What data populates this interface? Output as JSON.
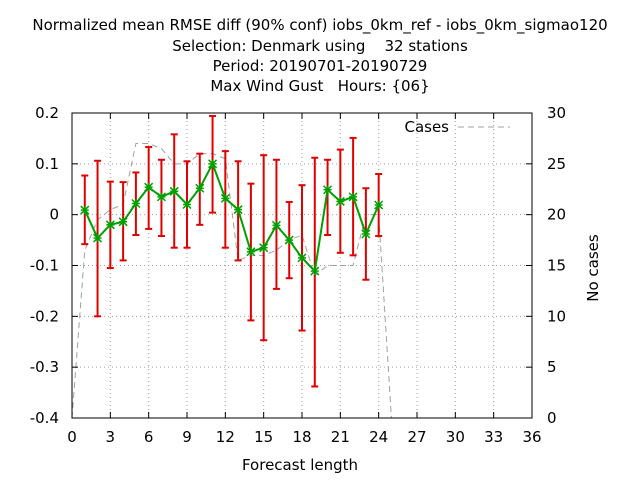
{
  "chart_data": {
    "type": "line",
    "title": [
      "Normalized mean RMSE diff (90% conf) iobs_0km_ref - iobs_0km_sigmao120",
      "Selection: Denmark using    32 stations",
      "Period: 20190701-20190729",
      "Max Wind Gust   Hours: {06}"
    ],
    "xlabel": "Forecast length",
    "ylabel": "",
    "y2label": "No cases",
    "xlim": [
      0,
      36
    ],
    "ylim": [
      -0.4,
      0.2
    ],
    "y2lim": [
      0,
      30
    ],
    "xticks": [
      0,
      3,
      6,
      9,
      12,
      15,
      18,
      21,
      24,
      27,
      30,
      33,
      36
    ],
    "yticks": [
      -0.4,
      -0.3,
      -0.2,
      -0.1,
      0,
      0.1,
      0.2
    ],
    "ytick_labels": [
      "-0.4",
      "-0.3",
      "-0.2",
      "-0.1",
      "0",
      "0.1",
      "0.2"
    ],
    "y2ticks": [
      0,
      5,
      10,
      15,
      20,
      25,
      30
    ],
    "grid": true,
    "legend_position": "top-right",
    "series": [
      {
        "name": "",
        "kind": "mean_with_errorbars",
        "color": "#00a000",
        "errorbar_color": "#e00000",
        "x": [
          1,
          2,
          3,
          4,
          5,
          6,
          7,
          8,
          9,
          10,
          11,
          12,
          13,
          14,
          15,
          16,
          17,
          18,
          19,
          20,
          21,
          22,
          23,
          24
        ],
        "y": [
          0.009,
          -0.046,
          -0.02,
          -0.014,
          0.022,
          0.054,
          0.035,
          0.046,
          0.02,
          0.052,
          0.1,
          0.032,
          0.01,
          -0.073,
          -0.065,
          -0.021,
          -0.05,
          -0.085,
          -0.111,
          0.049,
          0.026,
          0.035,
          -0.038,
          0.019
        ],
        "lower": [
          -0.058,
          -0.2,
          -0.105,
          -0.09,
          -0.04,
          -0.028,
          -0.042,
          -0.065,
          -0.065,
          -0.02,
          0.004,
          -0.065,
          -0.09,
          -0.208,
          -0.247,
          -0.146,
          -0.125,
          -0.228,
          -0.338,
          -0.04,
          -0.075,
          -0.08,
          -0.128,
          -0.042
        ],
        "upper": [
          0.077,
          0.106,
          0.065,
          0.064,
          0.083,
          0.133,
          0.108,
          0.158,
          0.105,
          0.12,
          0.194,
          0.125,
          0.105,
          0.061,
          0.117,
          0.108,
          0.025,
          0.058,
          0.112,
          0.108,
          0.128,
          0.151,
          0.052,
          0.08
        ]
      },
      {
        "name": "Cases",
        "axis": "right",
        "color": "#a0a0a0",
        "dashed": true,
        "x": [
          0,
          1,
          2,
          3,
          4,
          5,
          6,
          7,
          8,
          9,
          10,
          11,
          12,
          13,
          14,
          15,
          16,
          17,
          18,
          19,
          20,
          21,
          22,
          23,
          24,
          25,
          26,
          27,
          28,
          29,
          30,
          31,
          32,
          33,
          34,
          35,
          36
        ],
        "y": [
          0,
          16.5,
          19.5,
          20.5,
          21,
          27,
          27,
          26.5,
          25,
          25,
          26,
          26,
          25.5,
          15.5,
          16,
          16,
          16.5,
          17.5,
          18,
          14,
          15,
          15,
          15,
          20,
          20,
          0,
          0,
          0,
          0,
          0,
          0,
          0,
          0,
          0,
          0,
          0,
          0
        ]
      }
    ]
  }
}
